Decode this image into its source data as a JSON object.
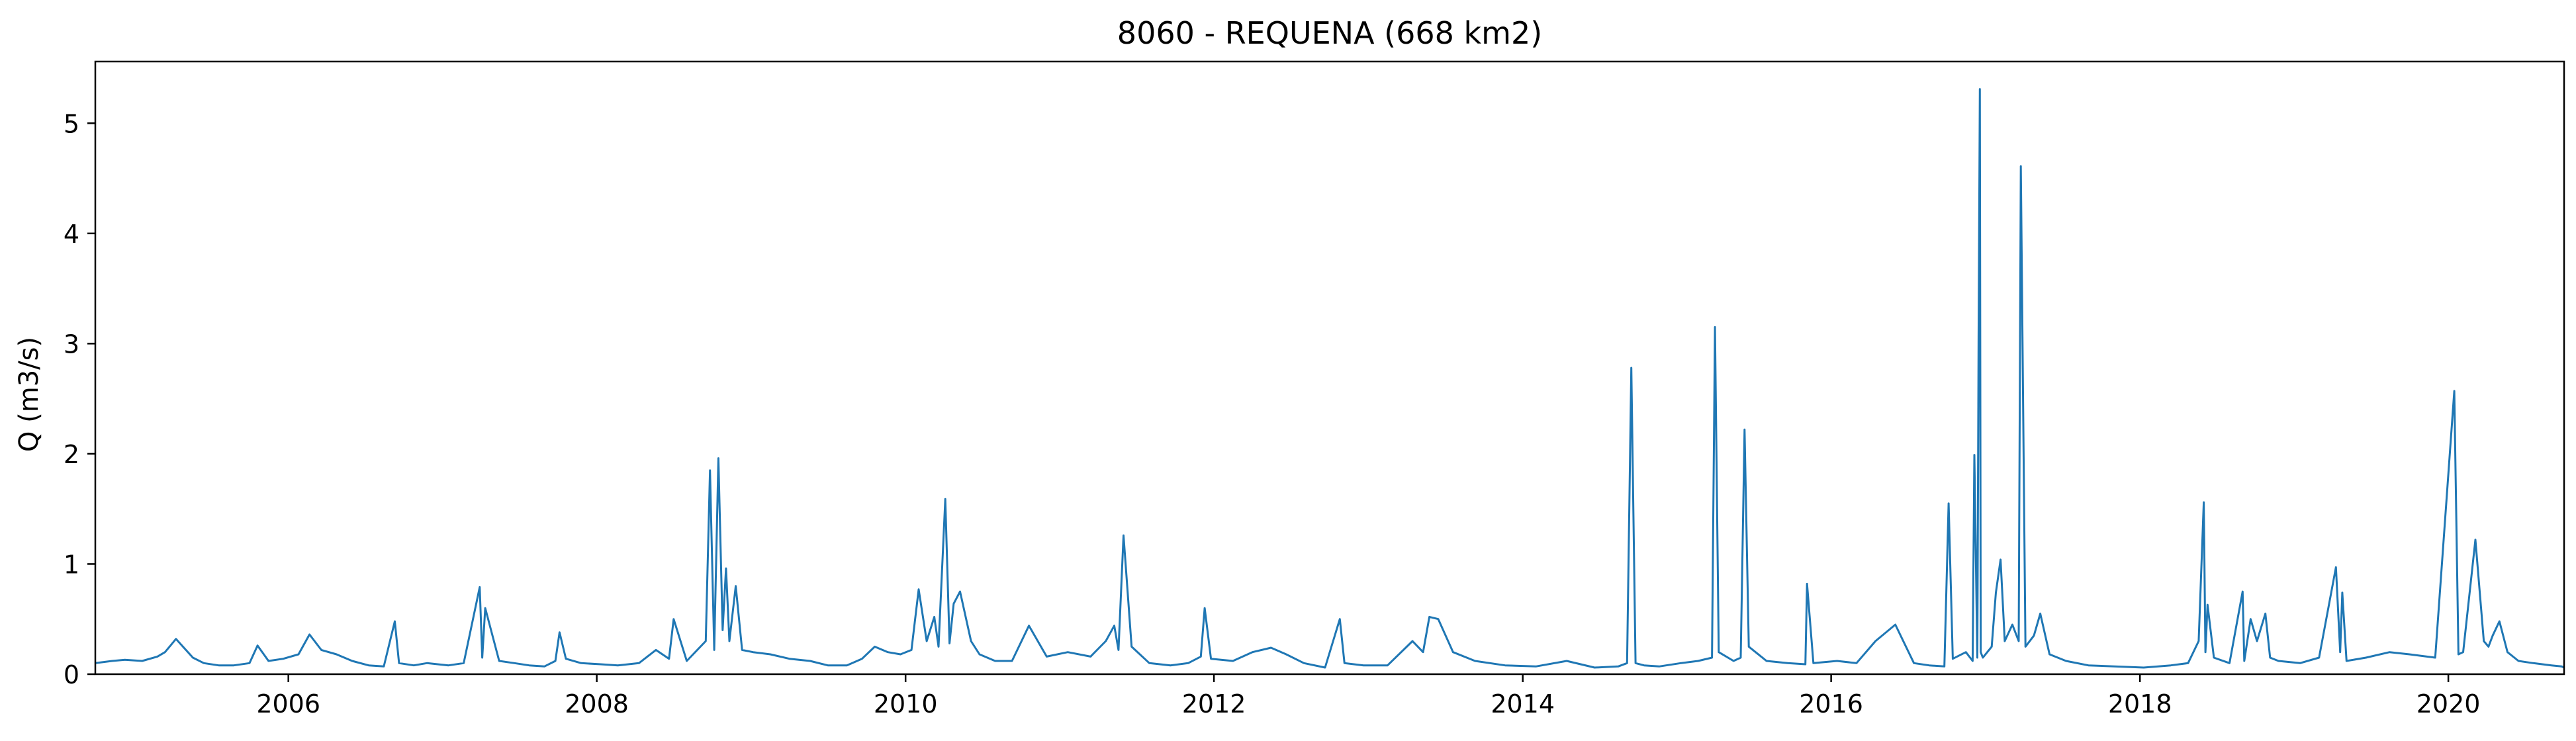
{
  "chart_data": {
    "type": "line",
    "title": "8060 - REQUENA (668 km2)",
    "xlabel": "",
    "ylabel": "Q (m3/s)",
    "xlim": [
      "2004-10-01",
      "2020-10-01"
    ],
    "ylim": [
      0,
      5.56
    ],
    "x_ticks": [
      "2006",
      "2008",
      "2010",
      "2012",
      "2014",
      "2016",
      "2018",
      "2020"
    ],
    "y_ticks": [
      "0",
      "1",
      "2",
      "3",
      "4",
      "5"
    ],
    "grid": false,
    "legend": "none",
    "line_color": "#1f77b4",
    "series": [
      {
        "x": [
          "2004-10-01",
          "2004-11-10",
          "2004-12-10",
          "2005-01-20",
          "2005-02-25",
          "2005-03-15",
          "2005-04-10",
          "2005-05-20",
          "2005-06-15",
          "2005-07-20",
          "2005-08-25",
          "2005-10-01",
          "2005-10-20",
          "2005-11-15",
          "2005-12-20",
          "2006-01-25",
          "2006-02-20",
          "2006-03-20",
          "2006-04-25",
          "2006-06-01",
          "2006-07-10",
          "2006-08-15",
          "2006-09-10",
          "2006-09-20",
          "2006-10-25",
          "2006-11-25",
          "2007-01-15",
          "2007-02-20",
          "2007-03-30",
          "2007-04-05",
          "2007-04-12",
          "2007-05-15",
          "2007-06-20",
          "2007-07-25",
          "2007-08-30",
          "2007-09-25",
          "2007-10-05",
          "2007-10-20",
          "2007-11-25",
          "2008-01-10",
          "2008-02-20",
          "2008-04-10",
          "2008-05-20",
          "2008-06-20",
          "2008-07-01",
          "2008-08-01",
          "2008-09-15",
          "2008-09-25",
          "2008-10-05",
          "2008-10-15",
          "2008-10-25",
          "2008-11-02",
          "2008-11-10",
          "2008-11-25",
          "2008-12-10",
          "2009-01-05",
          "2009-02-15",
          "2009-04-01",
          "2009-05-20",
          "2009-07-01",
          "2009-08-15",
          "2009-09-20",
          "2009-10-20",
          "2009-11-20",
          "2009-12-20",
          "2010-01-15",
          "2010-02-01",
          "2010-02-20",
          "2010-03-10",
          "2010-03-20",
          "2010-04-05",
          "2010-04-15",
          "2010-04-25",
          "2010-05-10",
          "2010-06-05",
          "2010-06-25",
          "2010-08-01",
          "2010-09-10",
          "2010-10-20",
          "2010-12-01",
          "2011-01-20",
          "2011-03-15",
          "2011-04-20",
          "2011-05-10",
          "2011-05-20",
          "2011-06-01",
          "2011-06-20",
          "2011-08-01",
          "2011-09-20",
          "2011-11-01",
          "2011-12-01",
          "2011-12-10",
          "2011-12-25",
          "2012-02-15",
          "2012-04-01",
          "2012-05-15",
          "2012-06-20",
          "2012-08-01",
          "2012-09-20",
          "2012-10-25",
          "2012-11-05",
          "2012-12-20",
          "2013-02-15",
          "2013-04-15",
          "2013-05-10",
          "2013-05-25",
          "2013-06-15",
          "2013-07-20",
          "2013-09-10",
          "2013-11-20",
          "2014-02-01",
          "2014-04-15",
          "2014-06-20",
          "2014-08-15",
          "2014-09-05",
          "2014-09-15",
          "2014-09-25",
          "2014-10-15",
          "2014-11-20",
          "2015-01-10",
          "2015-02-20",
          "2015-03-25",
          "2015-04-01",
          "2015-04-10",
          "2015-05-15",
          "2015-06-01",
          "2015-06-10",
          "2015-06-20",
          "2015-08-01",
          "2015-09-20",
          "2015-11-01",
          "2015-11-05",
          "2015-11-20",
          "2016-01-15",
          "2016-03-01",
          "2016-04-15",
          "2016-06-01",
          "2016-07-15",
          "2016-08-20",
          "2016-09-25",
          "2016-10-05",
          "2016-10-15",
          "2016-11-15",
          "2016-12-01",
          "2016-12-05",
          "2016-12-12",
          "2016-12-15",
          "2016-12-18",
          "2016-12-20",
          "2016-12-25",
          "2017-01-15",
          "2017-01-25",
          "2017-02-05",
          "2017-02-15",
          "2017-03-05",
          "2017-03-20",
          "2017-03-25",
          "2017-04-05",
          "2017-04-25",
          "2017-05-10",
          "2017-06-01",
          "2017-07-10",
          "2017-09-01",
          "2017-11-01",
          "2018-01-10",
          "2018-03-15",
          "2018-04-25",
          "2018-05-20",
          "2018-06-01",
          "2018-06-05",
          "2018-06-10",
          "2018-06-25",
          "2018-08-01",
          "2018-09-01",
          "2018-09-05",
          "2018-09-20",
          "2018-10-05",
          "2018-10-25",
          "2018-11-05",
          "2018-11-25",
          "2019-01-15",
          "2019-03-01",
          "2019-04-10",
          "2019-04-20",
          "2019-04-25",
          "2019-05-05",
          "2019-06-20",
          "2019-08-15",
          "2019-10-01",
          "2019-12-01",
          "2020-01-15",
          "2020-01-25",
          "2020-02-05",
          "2020-03-05",
          "2020-03-25",
          "2020-04-05",
          "2020-04-15",
          "2020-05-01",
          "2020-05-20",
          "2020-06-15",
          "2020-07-20",
          "2020-09-01",
          "2020-09-25",
          "2020-10-01"
        ],
        "y": [
          0.1,
          0.12,
          0.13,
          0.12,
          0.16,
          0.2,
          0.32,
          0.15,
          0.1,
          0.08,
          0.08,
          0.1,
          0.26,
          0.12,
          0.14,
          0.18,
          0.36,
          0.22,
          0.18,
          0.12,
          0.08,
          0.07,
          0.48,
          0.1,
          0.08,
          0.1,
          0.08,
          0.1,
          0.79,
          0.15,
          0.6,
          0.12,
          0.1,
          0.08,
          0.07,
          0.12,
          0.38,
          0.14,
          0.1,
          0.09,
          0.08,
          0.1,
          0.22,
          0.14,
          0.5,
          0.12,
          0.3,
          1.85,
          0.22,
          1.96,
          0.4,
          0.96,
          0.3,
          0.8,
          0.22,
          0.2,
          0.18,
          0.14,
          0.12,
          0.08,
          0.08,
          0.14,
          0.25,
          0.2,
          0.18,
          0.22,
          0.77,
          0.3,
          0.52,
          0.25,
          1.59,
          0.28,
          0.64,
          0.75,
          0.3,
          0.18,
          0.12,
          0.12,
          0.44,
          0.16,
          0.2,
          0.16,
          0.3,
          0.44,
          0.22,
          1.26,
          0.25,
          0.1,
          0.08,
          0.1,
          0.16,
          0.6,
          0.14,
          0.12,
          0.2,
          0.24,
          0.18,
          0.1,
          0.06,
          0.5,
          0.1,
          0.08,
          0.08,
          0.3,
          0.2,
          0.52,
          0.5,
          0.2,
          0.12,
          0.08,
          0.07,
          0.12,
          0.06,
          0.07,
          0.1,
          2.78,
          0.1,
          0.08,
          0.07,
          0.1,
          0.12,
          0.15,
          3.15,
          0.2,
          0.12,
          0.15,
          2.22,
          0.25,
          0.12,
          0.1,
          0.09,
          0.82,
          0.1,
          0.12,
          0.1,
          0.3,
          0.45,
          0.1,
          0.08,
          0.07,
          1.55,
          0.14,
          0.2,
          0.12,
          1.99,
          0.15,
          3.05,
          5.31,
          0.2,
          0.15,
          0.25,
          0.74,
          1.04,
          0.3,
          0.45,
          0.3,
          4.61,
          0.25,
          0.35,
          0.55,
          0.18,
          0.12,
          0.08,
          0.07,
          0.06,
          0.08,
          0.1,
          0.3,
          1.56,
          0.2,
          0.63,
          0.15,
          0.1,
          0.75,
          0.12,
          0.5,
          0.3,
          0.55,
          0.15,
          0.12,
          0.1,
          0.15,
          0.97,
          0.2,
          0.74,
          0.12,
          0.15,
          0.2,
          0.18,
          0.15,
          2.57,
          0.18,
          0.2,
          1.22,
          0.3,
          0.25,
          0.35,
          0.48,
          0.2,
          0.12,
          0.1,
          0.08,
          0.07,
          0.06
        ]
      }
    ]
  }
}
